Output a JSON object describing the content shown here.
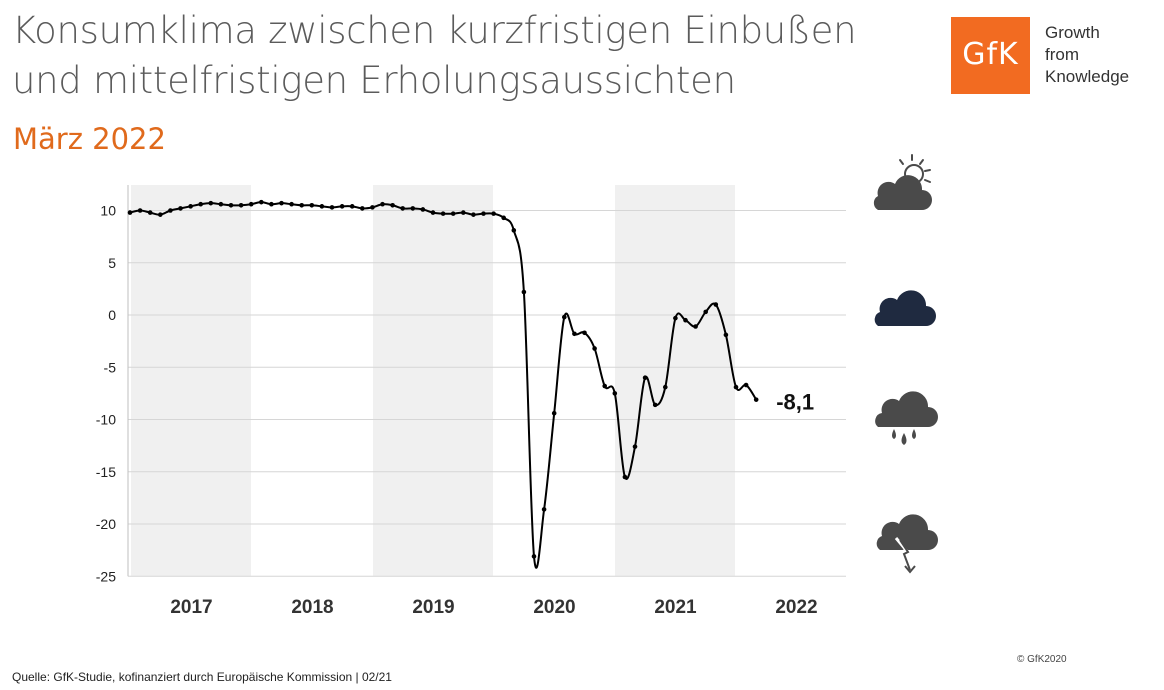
{
  "header": {
    "title_line1": "Konsumklima zwischen kurzfristigen Einbußen",
    "title_line2": "und mittelfristigen Erholungsaussichten",
    "subtitle": "März 2022"
  },
  "logo": {
    "text": "GfK",
    "tagline_line1": "Growth",
    "tagline_line2": "from",
    "tagline_line3": "Knowledge",
    "color": "#f26b21"
  },
  "weather_icons": [
    {
      "icon": "cloud-sun-icon",
      "color": "#4a4a4a"
    },
    {
      "icon": "cloud-icon",
      "color": "#1f2a40"
    },
    {
      "icon": "cloud-rain-icon",
      "color": "#4a4a4a"
    },
    {
      "icon": "cloud-down-arrow-icon",
      "color": "#4a4a4a"
    }
  ],
  "chart_data": {
    "type": "line",
    "title": "",
    "xlabel": "",
    "ylabel": "",
    "ylim": [
      -25,
      12.5
    ],
    "yticks": [
      10,
      5,
      0,
      -5,
      -10,
      -15,
      -20,
      -25
    ],
    "ytick_labels": [
      "10",
      "5",
      "0",
      "-5",
      "-10",
      "-15",
      "-20",
      "-25"
    ],
    "year_labels": [
      "2017",
      "2018",
      "2019",
      "2020",
      "2021",
      "2022"
    ],
    "shaded_years": [
      "2017",
      "2019",
      "2021"
    ],
    "grid": true,
    "series": [
      {
        "color": "#000000",
        "values": [
          9.8,
          10.0,
          9.8,
          9.6,
          10.0,
          10.2,
          10.4,
          10.6,
          10.7,
          10.6,
          10.5,
          10.5,
          10.6,
          10.8,
          10.6,
          10.7,
          10.6,
          10.5,
          10.5,
          10.4,
          10.3,
          10.4,
          10.4,
          10.2,
          10.3,
          10.6,
          10.5,
          10.2,
          10.2,
          10.1,
          9.8,
          9.7,
          9.7,
          9.8,
          9.6,
          9.7,
          9.7,
          9.3,
          8.1,
          2.2,
          -23.1,
          -18.6,
          -9.4,
          -0.2,
          -1.8,
          -1.7,
          -3.2,
          -6.8,
          -7.5,
          -15.5,
          -12.6,
          -6.0,
          -8.6,
          -6.9,
          -0.3,
          -0.5,
          -1.1,
          0.3,
          1.0,
          -1.9,
          -6.9,
          -6.7,
          -8.1
        ]
      }
    ],
    "end_label": "-8,1"
  },
  "footer": {
    "source": "Quelle: GfK-Studie, kofinanziert durch Europäische Kommission | 02/21",
    "copyright": "© GfK2020"
  }
}
